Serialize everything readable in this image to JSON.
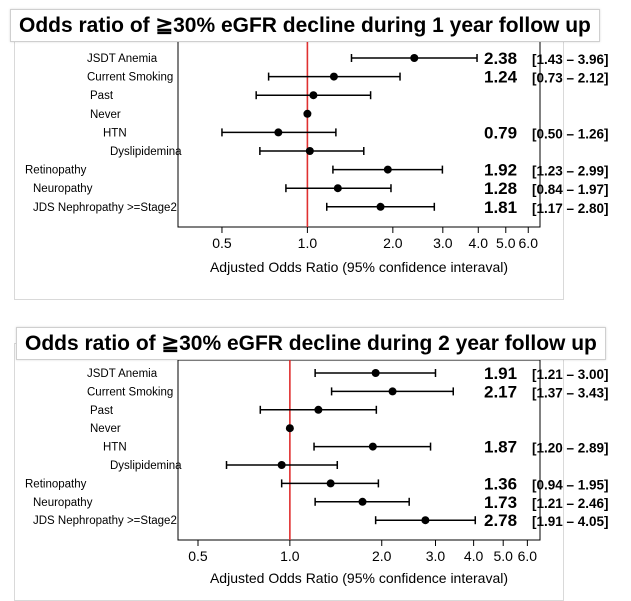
{
  "chart_data": [
    {
      "type": "forest",
      "title": "Odds ratio of ≧30% eGFR decline during 1 year follow up",
      "xlabel": "Adjusted Odds Ratio (95% confidence interaval)",
      "xscale": "log",
      "xlim": [
        0.35,
        6.6
      ],
      "xticks": [
        0.5,
        1.0,
        2.0,
        3.0,
        4.0,
        5.0,
        6.0
      ],
      "xtick_labels": [
        "0.5",
        "1.0",
        "2.0",
        "3.0",
        "4.0",
        "5.0",
        "6.0"
      ],
      "reference_line": 1.0,
      "reference_color": "#e03030",
      "rows": [
        {
          "label": "JSDT Anemia",
          "or": 2.38,
          "lo": 1.43,
          "hi": 3.96,
          "or_text": "2.38",
          "ci_text": "[1.43 – 3.96]"
        },
        {
          "label": "Current Smoking",
          "or": 1.24,
          "lo": 0.73,
          "hi": 2.12,
          "or_text": "1.24",
          "ci_text": "[0.73 – 2.12]"
        },
        {
          "label": "Past",
          "or": 1.05,
          "lo": 0.66,
          "hi": 1.67,
          "or_text": "",
          "ci_text": ""
        },
        {
          "label": "Never",
          "or": 1.0,
          "lo": 1.0,
          "hi": 1.0,
          "or_text": "",
          "ci_text": ""
        },
        {
          "label": "HTN",
          "or": 0.79,
          "lo": 0.5,
          "hi": 1.26,
          "or_text": "0.79",
          "ci_text": "[0.50 – 1.26]"
        },
        {
          "label": "Dyslipidemina",
          "or": 1.02,
          "lo": 0.68,
          "hi": 1.58,
          "or_text": "",
          "ci_text": ""
        },
        {
          "label": "Retinopathy",
          "or": 1.92,
          "lo": 1.23,
          "hi": 2.99,
          "or_text": "1.92",
          "ci_text": "[1.23 – 2.99]"
        },
        {
          "label": "Neuropathy",
          "or": 1.28,
          "lo": 0.84,
          "hi": 1.97,
          "or_text": "1.28",
          "ci_text": "[0.84 – 1.97]"
        },
        {
          "label": "JDS Nephropathy >=Stage2",
          "or": 1.81,
          "lo": 1.17,
          "hi": 2.8,
          "or_text": "1.81",
          "ci_text": "[1.17 – 2.80]"
        }
      ]
    },
    {
      "type": "forest",
      "title": "Odds ratio of  ≧30% eGFR decline during 2 year follow up",
      "xlabel": "Adjusted Odds Ratio (95% confidence interaval)",
      "xscale": "log",
      "xlim": [
        0.43,
        6.6
      ],
      "xticks": [
        0.5,
        1.0,
        2.0,
        3.0,
        4.0,
        5.0,
        6.0
      ],
      "xtick_labels": [
        "0.5",
        "1.0",
        "2.0",
        "3.0",
        "4.0",
        "5.0",
        "6.0"
      ],
      "reference_line": 1.0,
      "reference_color": "#e03030",
      "rows": [
        {
          "label": "JSDT Anemia",
          "or": 1.91,
          "lo": 1.21,
          "hi": 3.0,
          "or_text": "1.91",
          "ci_text": "[1.21 – 3.00]"
        },
        {
          "label": "Current Smoking",
          "or": 2.17,
          "lo": 1.37,
          "hi": 3.43,
          "or_text": "2.17",
          "ci_text": "[1.37 – 3.43]"
        },
        {
          "label": "Past",
          "or": 1.24,
          "lo": 0.8,
          "hi": 1.92,
          "or_text": "",
          "ci_text": ""
        },
        {
          "label": "Never",
          "or": 1.0,
          "lo": 1.0,
          "hi": 1.0,
          "or_text": "",
          "ci_text": ""
        },
        {
          "label": "HTN",
          "or": 1.87,
          "lo": 1.2,
          "hi": 2.89,
          "or_text": "1.87",
          "ci_text": "[1.20 – 2.89]"
        },
        {
          "label": "Dyslipidemina",
          "or": 0.94,
          "lo": 0.62,
          "hi": 1.43,
          "or_text": "",
          "ci_text": ""
        },
        {
          "label": "Retinopathy",
          "or": 1.36,
          "lo": 0.94,
          "hi": 1.95,
          "or_text": "1.36",
          "ci_text": "[0.94 – 1.95]"
        },
        {
          "label": "Neuropathy",
          "or": 1.73,
          "lo": 1.21,
          "hi": 2.46,
          "or_text": "1.73",
          "ci_text": "[1.21 – 2.46]"
        },
        {
          "label": "JDS Nephropathy >=Stage2",
          "or": 2.78,
          "lo": 1.91,
          "hi": 4.05,
          "or_text": "2.78",
          "ci_text": "[1.91 – 4.05]"
        }
      ]
    }
  ]
}
